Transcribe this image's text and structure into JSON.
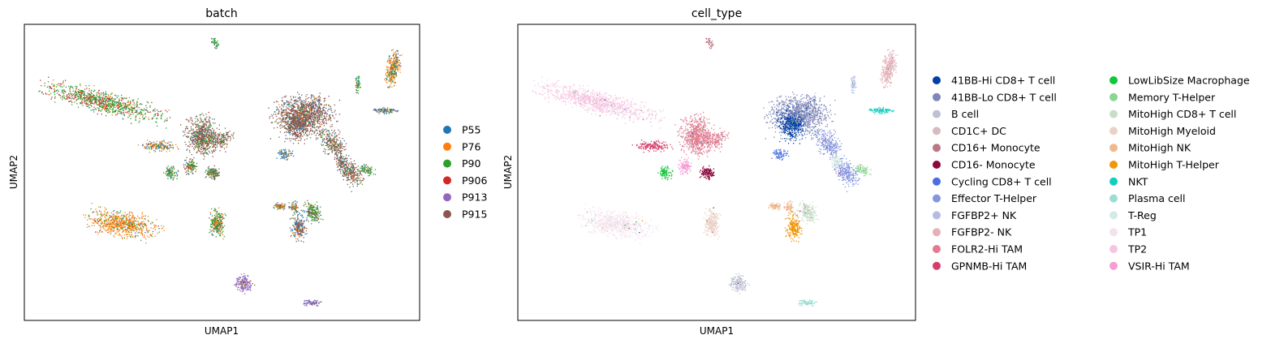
{
  "chart_data": [
    {
      "type": "scatter",
      "title": "batch",
      "xlabel": "UMAP1",
      "ylabel": "UMAP2",
      "legend_placement": "right",
      "grid": false,
      "x_ticks": false,
      "y_ticks": false,
      "legend": [
        {
          "name": "P55",
          "color": "#1f77b4"
        },
        {
          "name": "P76",
          "color": "#ff7f0e"
        },
        {
          "name": "P90",
          "color": "#2ca02c"
        },
        {
          "name": "P906",
          "color": "#d62728"
        },
        {
          "name": "P913",
          "color": "#9467bd"
        },
        {
          "name": "P915",
          "color": "#8c564b"
        }
      ]
    },
    {
      "type": "scatter",
      "title": "cell_type",
      "xlabel": "UMAP1",
      "ylabel": "UMAP2",
      "legend_placement": "right",
      "grid": false,
      "x_ticks": false,
      "y_ticks": false,
      "legend": [
        {
          "name": "41BB-Hi CD8+ T cell",
          "color": "#023fa5"
        },
        {
          "name": "41BB-Lo CD8+ T cell",
          "color": "#7d87b9"
        },
        {
          "name": "B cell",
          "color": "#bec1d4"
        },
        {
          "name": "CD1C+ DC",
          "color": "#d6bcc0"
        },
        {
          "name": "CD16+ Monocyte",
          "color": "#bb7784"
        },
        {
          "name": "CD16- Monocyte",
          "color": "#8e063b"
        },
        {
          "name": "Cycling CD8+ T cell",
          "color": "#4a6fe3"
        },
        {
          "name": "Effector T-Helper",
          "color": "#8595e1"
        },
        {
          "name": "FGFBP2+ NK",
          "color": "#b5bbe3"
        },
        {
          "name": "FGFBP2- NK",
          "color": "#e6afb9"
        },
        {
          "name": "FOLR2-Hi TAM",
          "color": "#e07b91"
        },
        {
          "name": "GPNMB-Hi TAM",
          "color": "#d33f6a"
        },
        {
          "name": "LowLibSize Macrophage",
          "color": "#11c638"
        },
        {
          "name": "Memory T-Helper",
          "color": "#8dd593"
        },
        {
          "name": "MitoHigh CD8+ T cell",
          "color": "#c6dec7"
        },
        {
          "name": "MitoHigh Myeloid",
          "color": "#ead3c6"
        },
        {
          "name": "MitoHigh NK",
          "color": "#f0b98d"
        },
        {
          "name": "MitoHigh T-Helper",
          "color": "#ef9708"
        },
        {
          "name": "NKT",
          "color": "#0fcfc0"
        },
        {
          "name": "Plasma cell",
          "color": "#9cded6"
        },
        {
          "name": "T-Reg",
          "color": "#d5eae7"
        },
        {
          "name": "TP1",
          "color": "#f3e1eb"
        },
        {
          "name": "TP2",
          "color": "#f6c4e1"
        },
        {
          "name": "VSIR-Hi TAM",
          "color": "#f79cd4"
        }
      ]
    }
  ]
}
